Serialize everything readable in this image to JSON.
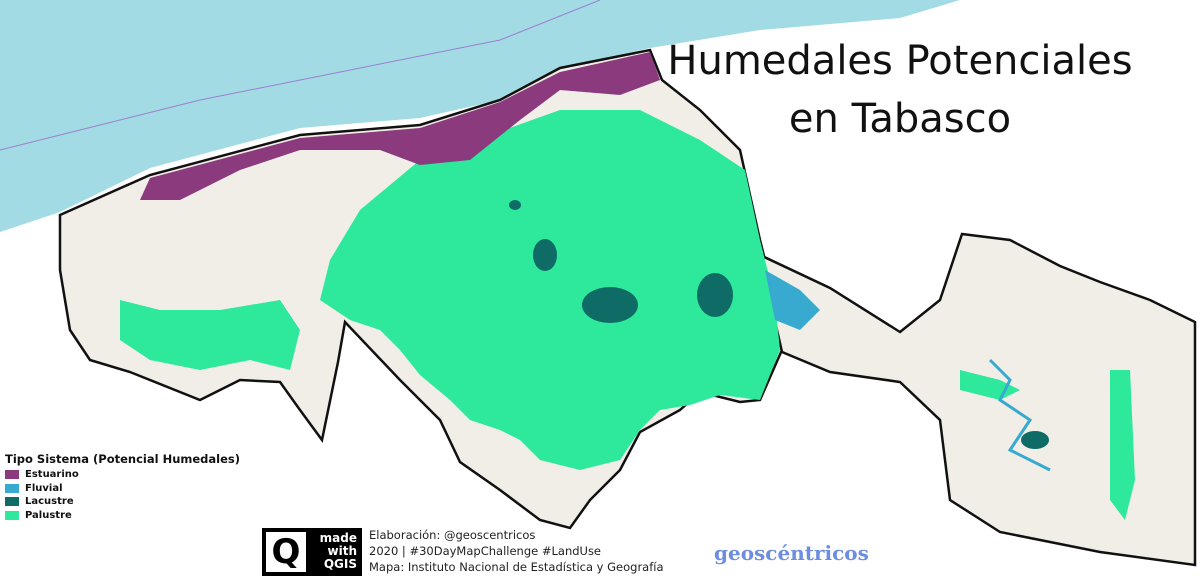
{
  "title": {
    "line1": "Humedales Potenciales",
    "line2": "en Tabasco"
  },
  "legend": {
    "title": "Tipo Sistema (Potencial Humedales)",
    "items": [
      {
        "label": "Estuarino",
        "color": "#8b3a7e"
      },
      {
        "label": "Fluvial",
        "color": "#38a9cf"
      },
      {
        "label": "Lacustre",
        "color": "#0f6b66"
      },
      {
        "label": "Palustre",
        "color": "#2ee89c"
      }
    ]
  },
  "colors": {
    "sea": "#a3dbe5",
    "land": "#f1eee8",
    "border": "#111111"
  },
  "qgis_badge": {
    "logo_letter": "Q",
    "line1": "made",
    "line2": "with",
    "line3": "QGIS"
  },
  "credits": {
    "line1": "Elaboración: @geoscentricos",
    "line2": "2020 |  #30DayMapChallenge #LandUse",
    "line3": "Mapa: Instituto Nacional de Estadística y Geografía"
  },
  "brand": "geoscéntricos"
}
